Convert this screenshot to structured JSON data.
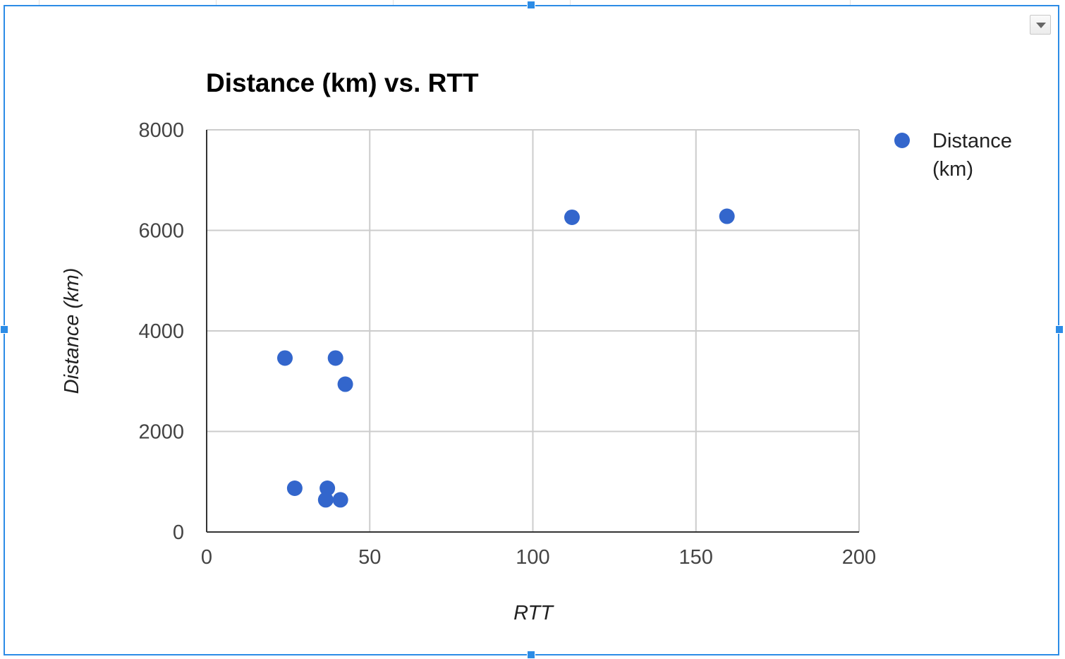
{
  "chart_data": {
    "type": "scatter",
    "title": "Distance (km) vs. RTT",
    "xlabel": "RTT",
    "ylabel": "Distance (km)",
    "xlim": [
      0,
      200
    ],
    "ylim": [
      0,
      8000
    ],
    "x_ticks": [
      "0",
      "50",
      "100",
      "150",
      "200"
    ],
    "y_ticks": [
      "0",
      "2000",
      "4000",
      "6000",
      "8000"
    ],
    "grid": true,
    "legend_position": "right",
    "legend_lines": [
      "Distance",
      "(km)"
    ],
    "series": [
      {
        "name": "Distance (km)",
        "color": "#3366cc",
        "points": [
          {
            "x": 24,
            "y": 3460
          },
          {
            "x": 39.5,
            "y": 3460
          },
          {
            "x": 42.5,
            "y": 2940
          },
          {
            "x": 27,
            "y": 870
          },
          {
            "x": 37,
            "y": 870
          },
          {
            "x": 36.5,
            "y": 640
          },
          {
            "x": 41,
            "y": 640
          },
          {
            "x": 112,
            "y": 6260
          },
          {
            "x": 159.5,
            "y": 6280
          }
        ]
      }
    ]
  },
  "colors": {
    "frame": "#2c8ce6",
    "gridline": "#cccccc",
    "axis": "#333333",
    "point": "#3366cc"
  },
  "icons": {
    "menu": "chevron-down-icon"
  }
}
